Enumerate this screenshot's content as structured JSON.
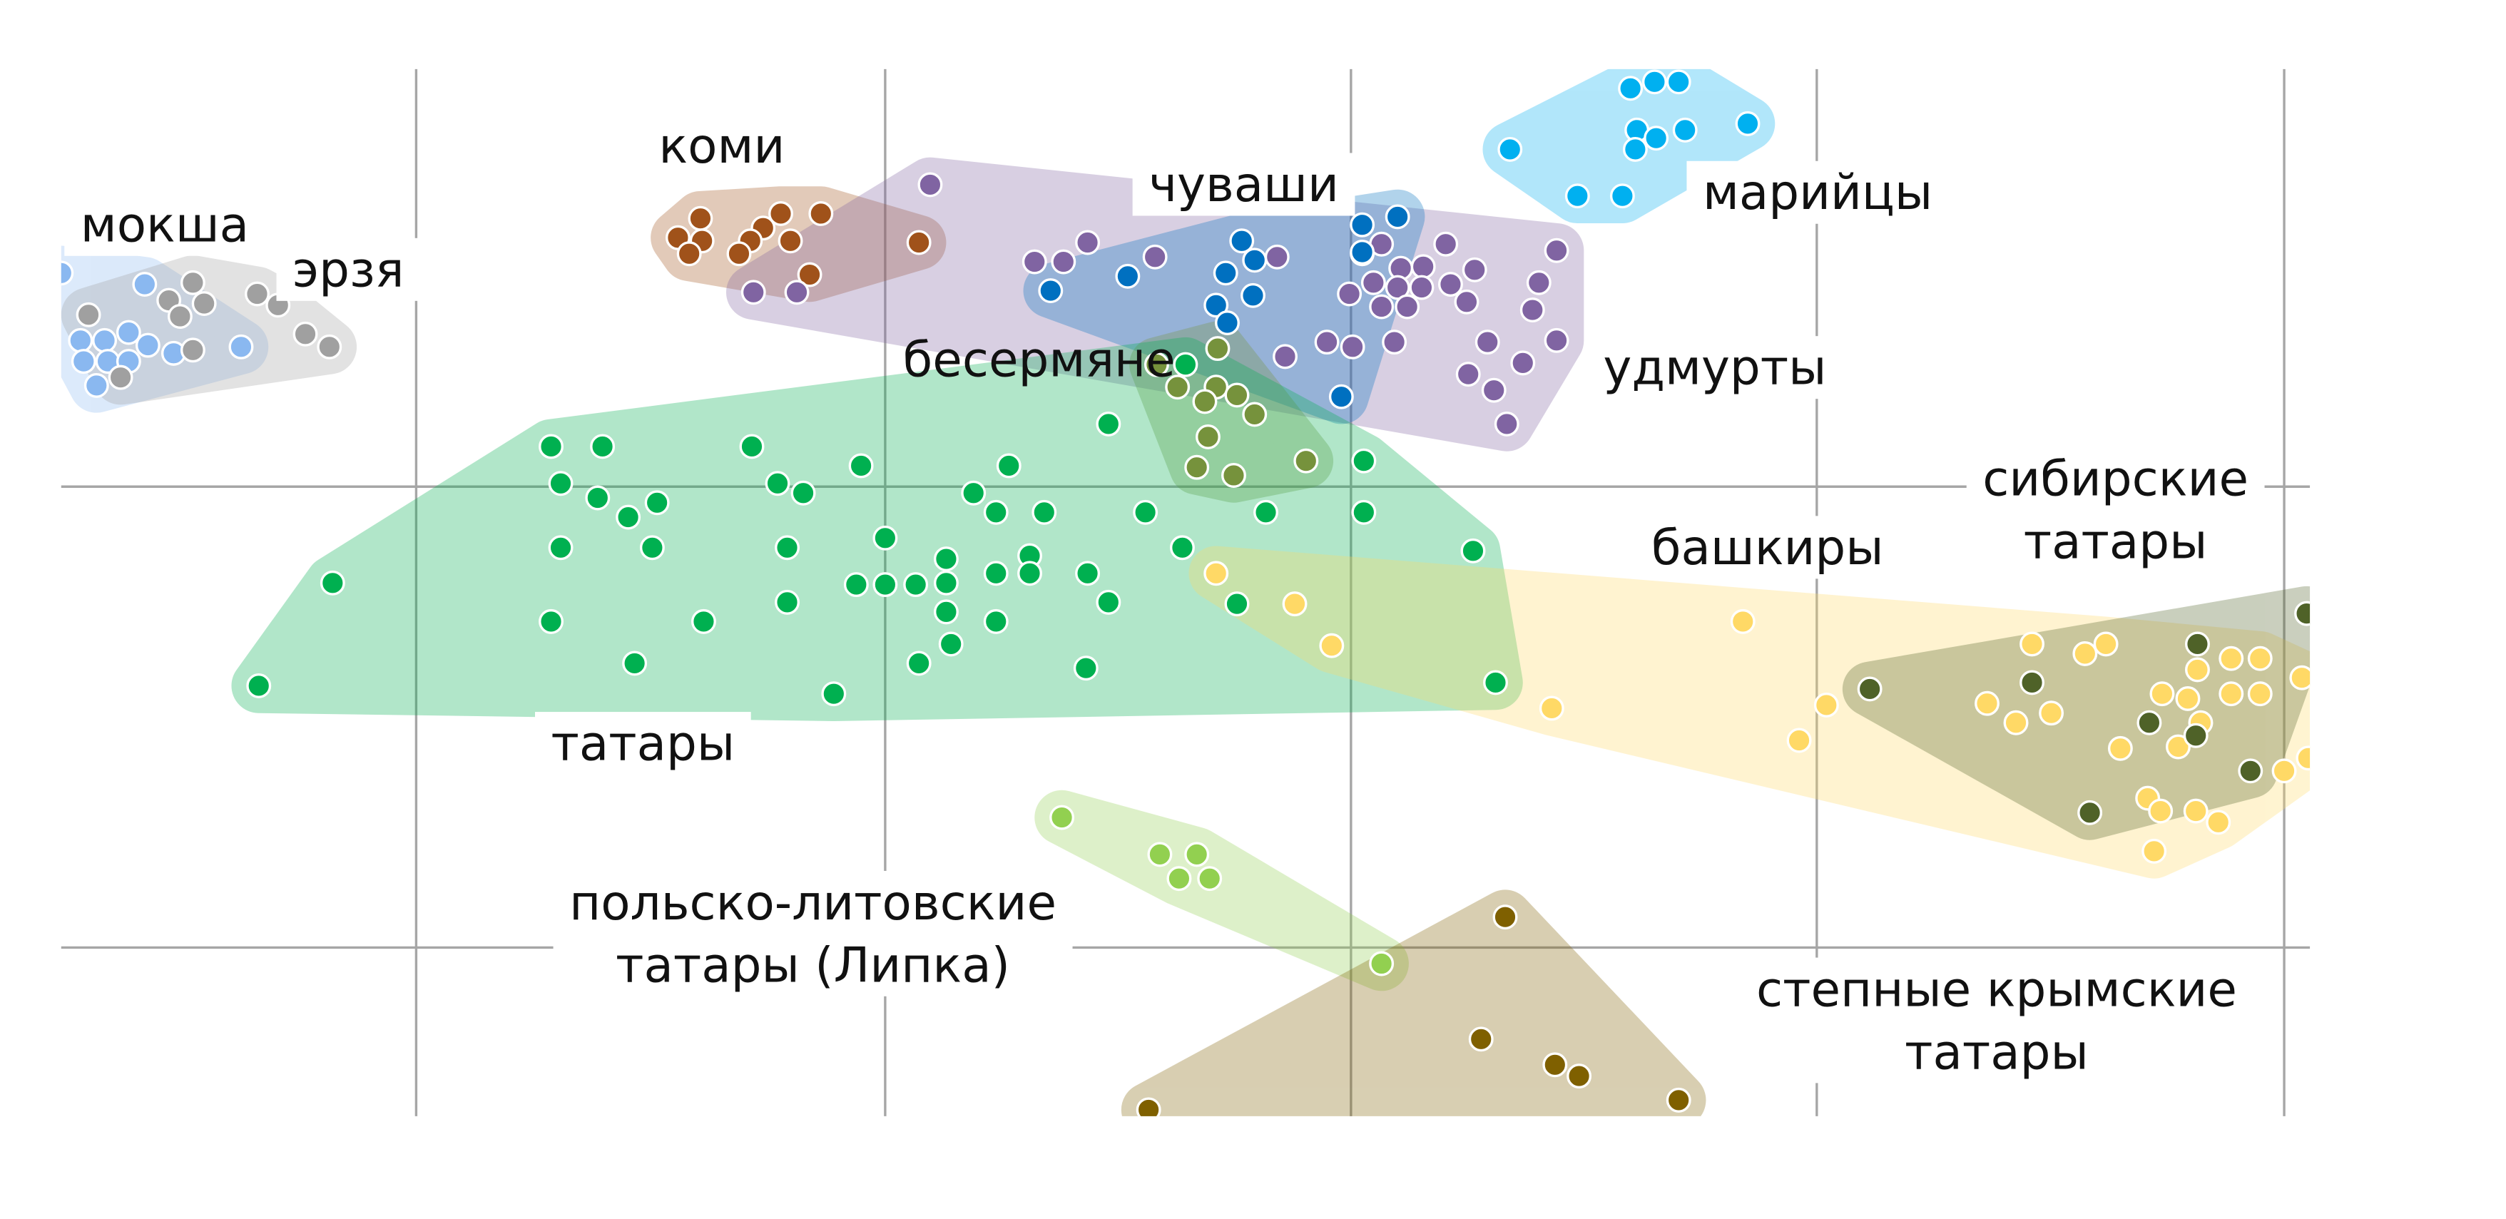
{
  "chart_data": {
    "type": "scatter",
    "xlim": [
      -221,
      1179
    ],
    "ylim": [
      -392,
      260
    ],
    "xticks": [
      0,
      292,
      582,
      872,
      1163
    ],
    "yticks": [
      0,
      -287
    ],
    "grid": true,
    "series": [
      {
        "name": "мокша",
        "color": "#8ab8f0",
        "x": [
          -221,
          -169,
          -209,
          -194,
          -179,
          -167,
          -207,
          -192,
          -179,
          -199,
          -151,
          -109
        ],
        "y": [
          133,
          126,
          91,
          91,
          96,
          88,
          78,
          78,
          78,
          63,
          83,
          87
        ]
      },
      {
        "name": "эрзя",
        "color": "#a0a0a0",
        "x": [
          -204,
          -154,
          -139,
          -132,
          -147,
          -139,
          -184,
          -99,
          -86,
          -69,
          -54
        ],
        "y": [
          107,
          116,
          127,
          114,
          106,
          85,
          68,
          120,
          113,
          95,
          87
        ]
      },
      {
        "name": "коми",
        "color": "#a0521a",
        "x": [
          177,
          163,
          178,
          170,
          227,
          252,
          216,
          208,
          233,
          201,
          245,
          313
        ],
        "y": [
          167,
          155,
          153,
          145,
          170,
          170,
          161,
          153,
          153,
          145,
          132,
          152
        ]
      },
      {
        "name": "удмурты",
        "color": "#8064a2",
        "x": [
          320,
          210,
          237,
          385,
          403,
          418,
          460,
          536,
          589,
          601,
          641,
          710,
          613,
          627,
          659,
          596,
          611,
          626,
          644,
          581,
          601,
          617,
          654,
          699,
          695,
          541,
          567,
          583,
          609,
          667,
          689,
          655,
          671,
          710,
          679
        ],
        "y": [
          188,
          121,
          121,
          140,
          140,
          152,
          143,
          143,
          145,
          151,
          151,
          147,
          136,
          137,
          135,
          127,
          124,
          124,
          126,
          120,
          112,
          112,
          115,
          127,
          110,
          81,
          90,
          87,
          90,
          90,
          77,
          70,
          60,
          91,
          39
        ]
      },
      {
        "name": "чуваши",
        "color": "#0070c0",
        "x": [
          589,
          611,
          514,
          522,
          504,
          521,
          443,
          395,
          498,
          505,
          576,
          589
        ],
        "y": [
          163,
          168,
          153,
          141,
          133,
          119,
          131,
          122,
          113,
          102,
          56,
          146
        ]
      },
      {
        "name": "марийцы",
        "color": "#00b0f0",
        "x": [
          756,
          771,
          786,
          760,
          772,
          790,
          829,
          681,
          759,
          723,
          751
        ],
        "y": [
          248,
          252,
          252,
          222,
          217,
          222,
          226,
          210,
          210,
          181,
          181
        ]
      },
      {
        "name": "бесермяне",
        "color": "#76923c",
        "x": [
          461,
          499,
          474,
          498,
          511,
          491,
          522,
          493,
          486,
          509,
          554
        ],
        "y": [
          76,
          86,
          62,
          62,
          57,
          53,
          45,
          31,
          12,
          7,
          16
        ]
      },
      {
        "name": "татары",
        "color": "#00b050",
        "x": [
          84,
          116,
          209,
          90,
          225,
          241,
          277,
          369,
          113,
          132,
          150,
          347,
          361,
          391,
          454,
          529,
          590,
          590,
          431,
          479,
          90,
          147,
          231,
          292,
          382,
          330,
          -52,
          274,
          292,
          311,
          330,
          361,
          382,
          418,
          477,
          658,
          84,
          179,
          231,
          330,
          361,
          431,
          511,
          -98,
          136,
          260,
          313,
          333,
          417,
          672
        ],
        "y": [
          25,
          25,
          25,
          2,
          2,
          -4,
          13,
          13,
          -7,
          -19,
          -10,
          -4,
          -16,
          -16,
          -16,
          -16,
          -16,
          16,
          39,
          76,
          -38,
          -38,
          -38,
          -32,
          -43,
          -45,
          -60,
          -61,
          -61,
          -61,
          -60,
          -54,
          -54,
          -54,
          -38,
          -40,
          -84,
          -84,
          -72,
          -78,
          -84,
          -72,
          -73,
          -124,
          -110,
          -129,
          -110,
          -98,
          -113,
          -122
        ]
      },
      {
        "name": "башкиры",
        "color": "#ffd966",
        "x": [
          498,
          547,
          570,
          707,
          826,
          878,
          861,
          1006,
          1039,
          1052,
          978,
          996,
          1018,
          1061,
          1097,
          1111,
          1087,
          1103,
          1130,
          1148,
          1130,
          1148,
          1109,
          1163,
          1174,
          1178,
          1078,
          1086,
          1108,
          1122,
          1082
        ],
        "y": [
          -54,
          -73,
          -99,
          -138,
          -84,
          -136,
          -158,
          -98,
          -104,
          -98,
          -135,
          -147,
          -141,
          -163,
          -162,
          -147,
          -129,
          -132,
          -107,
          -107,
          -129,
          -129,
          -114,
          -177,
          -119,
          -169,
          -194,
          -202,
          -202,
          -209,
          -227
        ]
      },
      {
        "name": "сибирские\nтатары",
        "color": "#4f6228",
        "x": [
          1177,
          1109,
          1006,
          905,
          1079,
          1108,
          1142,
          1042
        ],
        "y": [
          -79,
          -98,
          -122,
          -126,
          -147,
          -155,
          -177,
          -203
        ]
      },
      {
        "name": "польско-литовские\nтатары (Липка)",
        "color": "#92d050",
        "x": [
          402,
          463,
          486,
          475,
          494,
          601
        ],
        "y": [
          -206,
          -229,
          -229,
          -244,
          -244,
          -297
        ]
      },
      {
        "name": "степные крымские\nтатары",
        "color": "#7f6000",
        "x": [
          678,
          663,
          709,
          724,
          786,
          456
        ],
        "y": [
          -268,
          -344,
          -360,
          -367,
          -382,
          -388
        ]
      }
    ]
  }
}
